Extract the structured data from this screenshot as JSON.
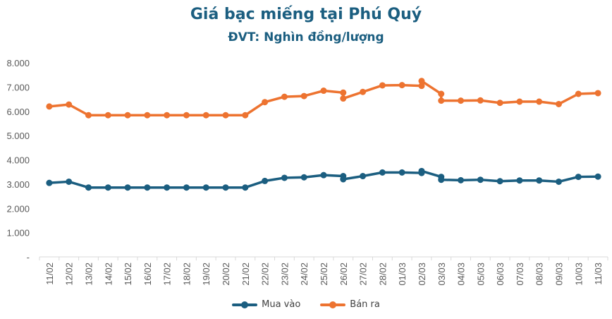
{
  "header": {
    "title": "Giá bạc miếng tại Phú Quý",
    "subtitle": "ĐVT: Nghìn đồng/lượng"
  },
  "legend": [
    {
      "label": "Mua vào",
      "color": "#1b5e80"
    },
    {
      "label": "Bán ra",
      "color": "#ed7330"
    }
  ],
  "y_ticks": [
    "-",
    "1.000",
    "2.000",
    "3.000",
    "4.000",
    "5.000",
    "6.000",
    "7.000",
    "8.000"
  ],
  "chart_data": {
    "type": "line",
    "title": "Giá bạc miếng tại Phú Quý",
    "subtitle": "ĐVT: Nghìn đồng/lượng",
    "xlabel": "",
    "ylabel": "",
    "ylim": [
      0,
      8000
    ],
    "y_ticks": [
      0,
      1000,
      2000,
      3000,
      4000,
      5000,
      6000,
      7000,
      8000
    ],
    "grid": false,
    "legend_position": "bottom",
    "categories": [
      "11/02",
      "12/02",
      "13/02",
      "14/02",
      "15/02",
      "16/02",
      "17/02",
      "18/02",
      "19/02",
      "20/02",
      "21/02",
      "22/02",
      "23/02",
      "24/02",
      "25/02",
      "26/02",
      "27/02",
      "28/02",
      "01/03",
      "02/03",
      "03/03",
      "04/03",
      "05/03",
      "06/03",
      "07/03",
      "08/03",
      "09/03",
      "10/03",
      "11/03"
    ],
    "series": [
      {
        "name": "Mua vào",
        "color": "#1b5e80",
        "points": [
          [
            "11/02",
            3050
          ],
          [
            "12/02",
            3100
          ],
          [
            "13/02",
            2860
          ],
          [
            "14/02",
            2860
          ],
          [
            "15/02",
            2860
          ],
          [
            "16/02",
            2860
          ],
          [
            "17/02",
            2860
          ],
          [
            "18/02",
            2860
          ],
          [
            "19/02",
            2860
          ],
          [
            "20/02",
            2860
          ],
          [
            "21/02",
            2860
          ],
          [
            "22/02",
            3130
          ],
          [
            "23/02",
            3260
          ],
          [
            "24/02",
            3280
          ],
          [
            "25/02",
            3370
          ],
          [
            "26/02",
            3330
          ],
          [
            "26/02",
            3200
          ],
          [
            "27/02",
            3330
          ],
          [
            "28/02",
            3480
          ],
          [
            "01/03",
            3480
          ],
          [
            "02/03",
            3460
          ],
          [
            "02/03",
            3540
          ],
          [
            "03/03",
            3300
          ],
          [
            "03/03",
            3180
          ],
          [
            "04/03",
            3160
          ],
          [
            "05/03",
            3180
          ],
          [
            "06/03",
            3120
          ],
          [
            "07/03",
            3150
          ],
          [
            "08/03",
            3150
          ],
          [
            "09/03",
            3100
          ],
          [
            "10/03",
            3300
          ],
          [
            "11/03",
            3310
          ]
        ]
      },
      {
        "name": "Bán ra",
        "color": "#ed7330",
        "points": [
          [
            "11/02",
            6200
          ],
          [
            "12/02",
            6280
          ],
          [
            "13/02",
            5840
          ],
          [
            "14/02",
            5840
          ],
          [
            "15/02",
            5840
          ],
          [
            "16/02",
            5840
          ],
          [
            "17/02",
            5840
          ],
          [
            "18/02",
            5840
          ],
          [
            "19/02",
            5840
          ],
          [
            "20/02",
            5840
          ],
          [
            "21/02",
            5840
          ],
          [
            "22/02",
            6380
          ],
          [
            "23/02",
            6600
          ],
          [
            "24/02",
            6630
          ],
          [
            "25/02",
            6850
          ],
          [
            "26/02",
            6770
          ],
          [
            "26/02",
            6530
          ],
          [
            "27/02",
            6800
          ],
          [
            "28/02",
            7070
          ],
          [
            "01/03",
            7080
          ],
          [
            "02/03",
            7050
          ],
          [
            "02/03",
            7250
          ],
          [
            "03/03",
            6720
          ],
          [
            "03/03",
            6440
          ],
          [
            "04/03",
            6440
          ],
          [
            "05/03",
            6450
          ],
          [
            "06/03",
            6350
          ],
          [
            "07/03",
            6400
          ],
          [
            "08/03",
            6400
          ],
          [
            "09/03",
            6300
          ],
          [
            "10/03",
            6720
          ],
          [
            "11/03",
            6750
          ]
        ]
      }
    ]
  }
}
